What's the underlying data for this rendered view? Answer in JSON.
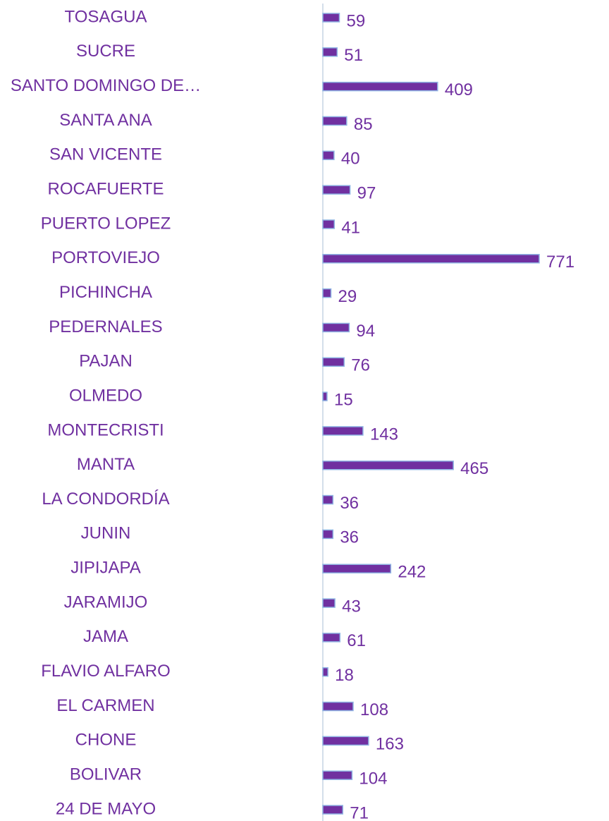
{
  "chart_data": {
    "type": "bar",
    "orientation": "horizontal",
    "categories": [
      "TOSAGUA",
      "SUCRE",
      "SANTO DOMINGO DE…",
      "SANTA ANA",
      "SAN VICENTE",
      "ROCAFUERTE",
      "PUERTO LOPEZ",
      "PORTOVIEJO",
      "PICHINCHA",
      "PEDERNALES",
      "PAJAN",
      "OLMEDO",
      "MONTECRISTI",
      "MANTA",
      "LA CONDORDÍA",
      "JUNIN",
      "JIPIJAPA",
      "JARAMIJO",
      "JAMA",
      "FLAVIO ALFARO",
      "EL CARMEN",
      "CHONE",
      "BOLIVAR",
      "24 DE MAYO"
    ],
    "values": [
      59,
      51,
      409,
      85,
      40,
      97,
      41,
      771,
      29,
      94,
      76,
      15,
      143,
      465,
      36,
      36,
      242,
      43,
      61,
      18,
      108,
      163,
      104,
      71
    ],
    "color": "#7030a0"
  }
}
